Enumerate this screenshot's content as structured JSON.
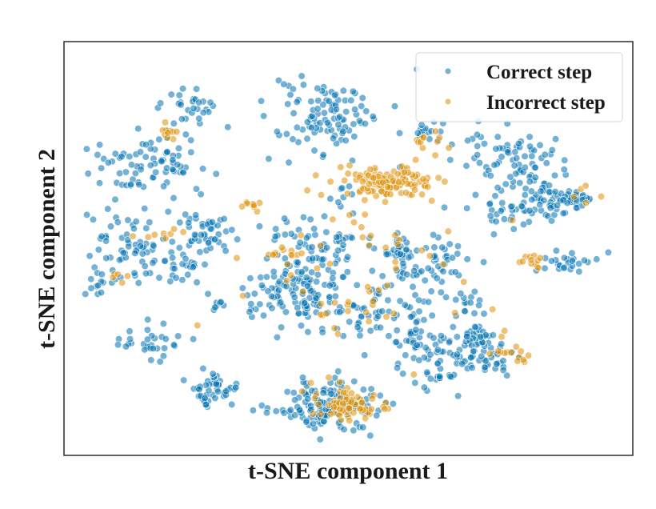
{
  "chart_data": {
    "type": "scatter",
    "title": "",
    "xlabel": "t-SNE component 1",
    "ylabel": "t-SNE component 2",
    "xlim": [
      -100,
      100
    ],
    "ylim": [
      -100,
      100
    ],
    "ticks_shown": false,
    "grid": false,
    "legend_placement": "top-right",
    "series": [
      {
        "name": "Correct step",
        "color": "#0173b2",
        "clusters": [
          {
            "cx": -57,
            "cy": 70,
            "sx": 5,
            "sy": 6,
            "n": 30,
            "seed": 11
          },
          {
            "cx": -70,
            "cy": 43,
            "sx": 10,
            "sy": 8,
            "n": 75,
            "seed": 12
          },
          {
            "cx": -81,
            "cy": 6,
            "sx": 7,
            "sy": 7,
            "n": 40,
            "seed": 13
          },
          {
            "cx": -67,
            "cy": -6,
            "sx": 8,
            "sy": 6,
            "n": 45,
            "seed": 14
          },
          {
            "cx": -52,
            "cy": 8,
            "sx": 5,
            "sy": 5,
            "n": 45,
            "seed": 15
          },
          {
            "cx": -89,
            "cy": -17,
            "sx": 3,
            "sy": 3,
            "n": 15,
            "seed": 16
          },
          {
            "cx": -71,
            "cy": -47,
            "sx": 5,
            "sy": 4,
            "n": 30,
            "seed": 17
          },
          {
            "cx": -49,
            "cy": -72,
            "sx": 5,
            "sy": 4,
            "n": 45,
            "seed": 18
          },
          {
            "cx": -8,
            "cy": 67,
            "sx": 10,
            "sy": 9,
            "n": 100,
            "seed": 19
          },
          {
            "cx": -17,
            "cy": -22,
            "sx": 10,
            "sy": 9,
            "n": 130,
            "seed": 20
          },
          {
            "cx": -9,
            "cy": 2,
            "sx": 5,
            "sy": 5,
            "n": 35,
            "seed": 21
          },
          {
            "cx": -2,
            "cy": 26,
            "sx": 3,
            "sy": 3,
            "n": 8,
            "seed": 22
          },
          {
            "cx": -7,
            "cy": -79,
            "sx": 10,
            "sy": 6,
            "n": 140,
            "seed": 23
          },
          {
            "cx": 19,
            "cy": -2,
            "sx": 3,
            "sy": 3,
            "n": 25,
            "seed": 24
          },
          {
            "cx": 14,
            "cy": -33,
            "sx": 8,
            "sy": 5,
            "n": 40,
            "seed": 25
          },
          {
            "cx": 27,
            "cy": -13,
            "sx": 5,
            "sy": 4,
            "n": 25,
            "seed": 26
          },
          {
            "cx": 38,
            "cy": -4,
            "sx": 4,
            "sy": 4,
            "n": 20,
            "seed": 27
          },
          {
            "cx": 50,
            "cy": -50,
            "sx": 6,
            "sy": 7,
            "n": 70,
            "seed": 28
          },
          {
            "cx": 33,
            "cy": -57,
            "sx": 6,
            "sy": 6,
            "n": 45,
            "seed": 29
          },
          {
            "cx": 23,
            "cy": -47,
            "sx": 4,
            "sy": 4,
            "n": 20,
            "seed": 30
          },
          {
            "cx": 43,
            "cy": -27,
            "sx": 4,
            "sy": 3,
            "n": 15,
            "seed": 31
          },
          {
            "cx": 60,
            "cy": 43,
            "sx": 8,
            "sy": 8,
            "n": 80,
            "seed": 32
          },
          {
            "cx": 72,
            "cy": 23,
            "sx": 5,
            "sy": 5,
            "n": 50,
            "seed": 33
          },
          {
            "cx": 58,
            "cy": 18,
            "sx": 5,
            "sy": 4,
            "n": 25,
            "seed": 34
          },
          {
            "cx": 83,
            "cy": 25,
            "sx": 3,
            "sy": 2,
            "n": 25,
            "seed": 35
          },
          {
            "cx": 78,
            "cy": -7,
            "sx": 5,
            "sy": 3,
            "n": 25,
            "seed": 36
          },
          {
            "cx": 29,
            "cy": 59,
            "sx": 3,
            "sy": 3,
            "n": 15,
            "seed": 37
          },
          {
            "cx": -47,
            "cy": -28,
            "sx": 3,
            "sy": 3,
            "n": 8,
            "seed": 38
          },
          {
            "cx": -24,
            "cy": 7,
            "sx": 4,
            "sy": 3,
            "n": 10,
            "seed": 39
          },
          {
            "cx": 5,
            "cy": -11,
            "sx": 25,
            "sy": 28,
            "n": 55,
            "seed": 40
          },
          {
            "cx": -81,
            "cy": 33,
            "sx": 2,
            "sy": 1,
            "n": 5,
            "seed": 41
          }
        ]
      },
      {
        "name": "Incorrect step",
        "color": "#de8f05",
        "clusters": [
          {
            "cx": 14,
            "cy": 33,
            "sx": 8,
            "sy": 4,
            "n": 130,
            "seed": 51
          },
          {
            "cx": -1,
            "cy": -77,
            "sx": 6,
            "sy": 5,
            "n": 70,
            "seed": 52
          },
          {
            "cx": -65,
            "cy": 57,
            "sx": 2,
            "sy": 2,
            "n": 10,
            "seed": 53
          },
          {
            "cx": -37,
            "cy": 22,
            "sx": 2,
            "sy": 2,
            "n": 8,
            "seed": 54
          },
          {
            "cx": -22,
            "cy": -3,
            "sx": 3,
            "sy": 3,
            "n": 10,
            "seed": 55
          },
          {
            "cx": 5,
            "cy": -10,
            "sx": 22,
            "sy": 22,
            "n": 60,
            "seed": 56
          },
          {
            "cx": 66,
            "cy": -6,
            "sx": 3,
            "sy": 2,
            "n": 12,
            "seed": 57
          },
          {
            "cx": -67,
            "cy": 10,
            "sx": 4,
            "sy": 3,
            "n": 8,
            "seed": 58
          },
          {
            "cx": 58,
            "cy": -50,
            "sx": 4,
            "sy": 5,
            "n": 15,
            "seed": 59
          },
          {
            "cx": 30,
            "cy": 55,
            "sx": 3,
            "sy": 3,
            "n": 10,
            "seed": 60
          },
          {
            "cx": -82,
            "cy": -15,
            "sx": 2,
            "sy": 2,
            "n": 5,
            "seed": 61
          },
          {
            "cx": 85,
            "cy": 27,
            "sx": 2,
            "sy": 2,
            "n": 5,
            "seed": 62
          }
        ]
      }
    ]
  }
}
